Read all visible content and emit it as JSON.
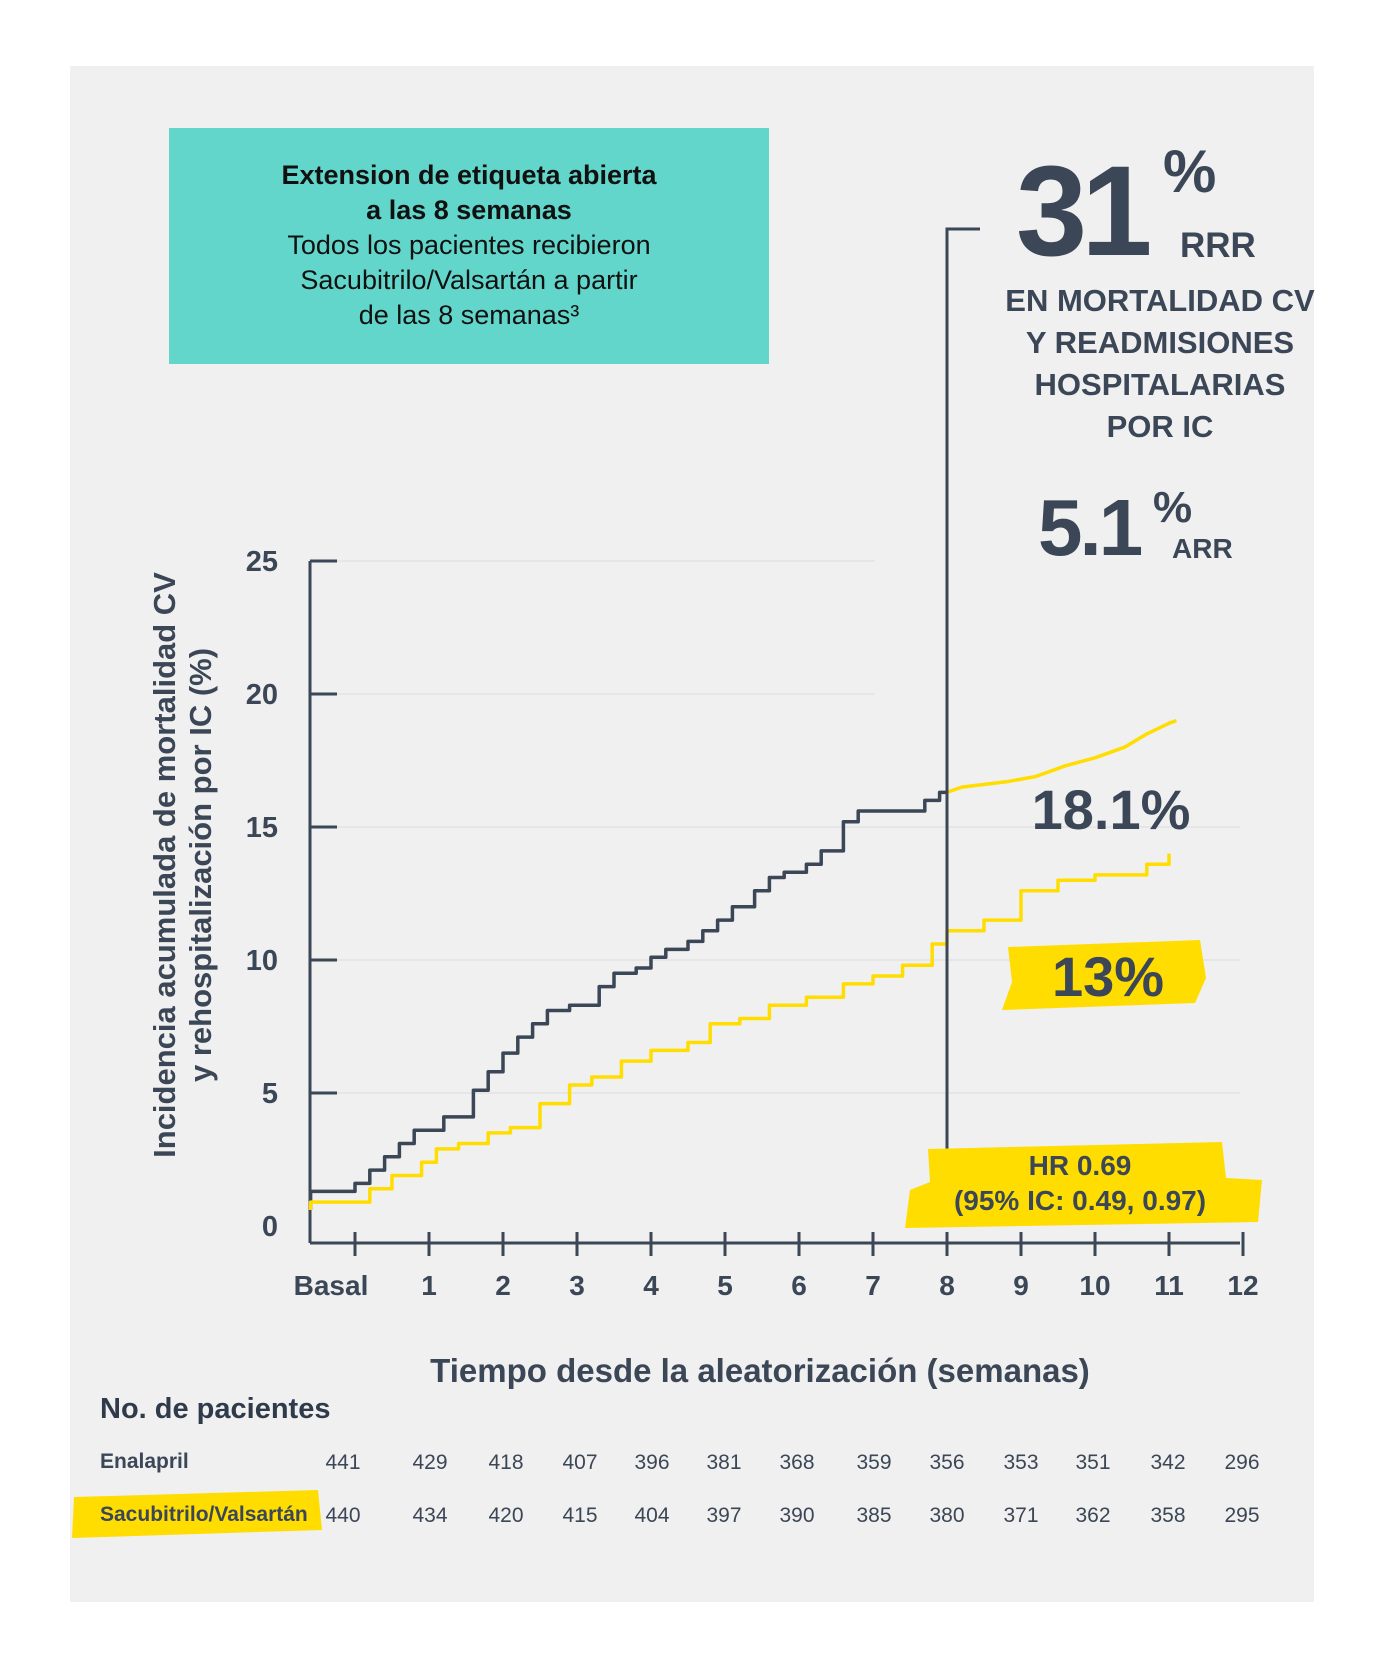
{
  "header_box": {
    "line1": "Extension de etiqueta abierta",
    "line2": "a las 8 semanas",
    "line3": "Todos los pacientes recibieron",
    "line4": "Sacubitrilo/Valsartán a partir",
    "line5": "de las 8 semanas³"
  },
  "rrr": {
    "value": "31",
    "pct": "%",
    "label": "RRR"
  },
  "claim": {
    "line1": "EN MORTALIDAD CV",
    "line2": "Y READMISIONES",
    "line3": "HOSPITALARIAS",
    "line4": "POR IC"
  },
  "arr": {
    "value": "5.1",
    "pct": "%",
    "label": "ARR"
  },
  "colors": {
    "panel": "#f0f0f0",
    "teal": "#63d6cb",
    "enalapril": "#3b4656",
    "sacubitril": "#ffdd00",
    "axis": "#3b4656"
  },
  "chart_data": {
    "type": "line",
    "ylabel_line1": "Incidencia acumulada de mortalidad CV",
    "ylabel_line2": "y rehospitalización por IC (%)",
    "xlabel": "Tiempo desde la aleatorización (semanas)",
    "ylim": [
      0,
      25
    ],
    "xlim": [
      -0.5,
      12
    ],
    "y_ticks": [
      0,
      5,
      10,
      15,
      20,
      25
    ],
    "x_tick_labels": [
      "Basal",
      "1",
      "2",
      "3",
      "4",
      "5",
      "6",
      "7",
      "8",
      "9",
      "10",
      "11",
      "12"
    ],
    "x_tick_values": [
      0,
      1,
      2,
      3,
      4,
      5,
      6,
      7,
      8,
      9,
      10,
      11,
      12
    ],
    "grid": "horizontal",
    "series": [
      {
        "name": "Enalapril",
        "color": "#3b4656",
        "end_label": "18.1%",
        "points": [
          [
            -0.6,
            0.6
          ],
          [
            -0.6,
            1.3
          ],
          [
            0,
            1.3
          ],
          [
            0,
            1.6
          ],
          [
            0.2,
            1.6
          ],
          [
            0.2,
            2.1
          ],
          [
            0.4,
            2.1
          ],
          [
            0.4,
            2.6
          ],
          [
            0.6,
            2.6
          ],
          [
            0.6,
            3.1
          ],
          [
            0.8,
            3.1
          ],
          [
            0.8,
            3.6
          ],
          [
            1.2,
            3.6
          ],
          [
            1.2,
            4.1
          ],
          [
            1.6,
            4.1
          ],
          [
            1.6,
            5.1
          ],
          [
            1.8,
            5.1
          ],
          [
            1.8,
            5.8
          ],
          [
            2.0,
            5.8
          ],
          [
            2.0,
            6.5
          ],
          [
            2.2,
            6.5
          ],
          [
            2.2,
            7.1
          ],
          [
            2.4,
            7.1
          ],
          [
            2.4,
            7.6
          ],
          [
            2.6,
            7.6
          ],
          [
            2.6,
            8.1
          ],
          [
            2.9,
            8.1
          ],
          [
            2.9,
            8.3
          ],
          [
            3.3,
            8.3
          ],
          [
            3.3,
            9.0
          ],
          [
            3.5,
            9.0
          ],
          [
            3.5,
            9.5
          ],
          [
            3.8,
            9.5
          ],
          [
            3.8,
            9.7
          ],
          [
            4.0,
            9.7
          ],
          [
            4.0,
            10.1
          ],
          [
            4.2,
            10.1
          ],
          [
            4.2,
            10.4
          ],
          [
            4.5,
            10.4
          ],
          [
            4.5,
            10.7
          ],
          [
            4.7,
            10.7
          ],
          [
            4.7,
            11.1
          ],
          [
            4.9,
            11.1
          ],
          [
            4.9,
            11.5
          ],
          [
            5.1,
            11.5
          ],
          [
            5.1,
            12.0
          ],
          [
            5.4,
            12.0
          ],
          [
            5.4,
            12.6
          ],
          [
            5.6,
            12.6
          ],
          [
            5.6,
            13.1
          ],
          [
            5.8,
            13.1
          ],
          [
            5.8,
            13.3
          ],
          [
            6.1,
            13.3
          ],
          [
            6.1,
            13.6
          ],
          [
            6.3,
            13.6
          ],
          [
            6.3,
            14.1
          ],
          [
            6.6,
            14.1
          ],
          [
            6.6,
            15.2
          ],
          [
            6.8,
            15.2
          ],
          [
            6.8,
            15.6
          ],
          [
            7.7,
            15.6
          ],
          [
            7.7,
            16.0
          ],
          [
            7.9,
            16.0
          ],
          [
            7.9,
            16.3
          ],
          [
            8.0,
            16.3
          ]
        ]
      },
      {
        "name": "Sacubitrilo/Valsartán",
        "color": "#ffdd00",
        "end_label": "13%",
        "points": [
          [
            -0.6,
            0.6
          ],
          [
            -0.6,
            0.9
          ],
          [
            0.2,
            0.9
          ],
          [
            0.2,
            1.4
          ],
          [
            0.5,
            1.4
          ],
          [
            0.5,
            1.9
          ],
          [
            0.9,
            1.9
          ],
          [
            0.9,
            2.4
          ],
          [
            1.1,
            2.4
          ],
          [
            1.1,
            2.9
          ],
          [
            1.4,
            2.9
          ],
          [
            1.4,
            3.1
          ],
          [
            1.8,
            3.1
          ],
          [
            1.8,
            3.5
          ],
          [
            2.1,
            3.5
          ],
          [
            2.1,
            3.7
          ],
          [
            2.5,
            3.7
          ],
          [
            2.5,
            4.6
          ],
          [
            2.9,
            4.6
          ],
          [
            2.9,
            5.3
          ],
          [
            3.2,
            5.3
          ],
          [
            3.2,
            5.6
          ],
          [
            3.6,
            5.6
          ],
          [
            3.6,
            6.2
          ],
          [
            4.0,
            6.2
          ],
          [
            4.0,
            6.6
          ],
          [
            4.5,
            6.6
          ],
          [
            4.5,
            6.9
          ],
          [
            4.8,
            6.9
          ],
          [
            4.8,
            7.6
          ],
          [
            5.2,
            7.6
          ],
          [
            5.2,
            7.8
          ],
          [
            5.6,
            7.8
          ],
          [
            5.6,
            8.3
          ],
          [
            6.1,
            8.3
          ],
          [
            6.1,
            8.6
          ],
          [
            6.6,
            8.6
          ],
          [
            6.6,
            9.1
          ],
          [
            7.0,
            9.1
          ],
          [
            7.0,
            9.4
          ],
          [
            7.4,
            9.4
          ],
          [
            7.4,
            9.8
          ],
          [
            7.8,
            9.8
          ],
          [
            7.8,
            10.6
          ],
          [
            8.0,
            10.6
          ],
          [
            8.0,
            11.1
          ],
          [
            8.5,
            11.1
          ],
          [
            8.5,
            11.5
          ],
          [
            9.0,
            11.5
          ],
          [
            9.0,
            12.6
          ],
          [
            9.5,
            12.6
          ],
          [
            9.5,
            13.0
          ],
          [
            10.0,
            13.0
          ],
          [
            10.0,
            13.2
          ],
          [
            10.7,
            13.2
          ],
          [
            10.7,
            13.6
          ],
          [
            11.0,
            13.6
          ],
          [
            11.0,
            14.0
          ]
        ]
      },
      {
        "name": "",
        "color": "#ffdd00",
        "points": [
          [
            8.0,
            16.3
          ],
          [
            8.2,
            16.5
          ],
          [
            8.8,
            16.7
          ],
          [
            9.2,
            16.9
          ],
          [
            9.6,
            17.3
          ],
          [
            10.0,
            17.6
          ],
          [
            10.4,
            18.0
          ],
          [
            10.7,
            18.5
          ],
          [
            11.0,
            18.9
          ],
          [
            11.1,
            19.0
          ]
        ]
      }
    ],
    "annotation": {
      "line1": "HR 0.69",
      "line2": "(95% IC: 0.49, 0.97)",
      "arrow_at_week": 8
    }
  },
  "risk_table": {
    "title": "No. de pacientes",
    "rows": [
      {
        "label": "Enalapril",
        "values": [
          "441",
          "429",
          "418",
          "407",
          "396",
          "381",
          "368",
          "359",
          "356",
          "353",
          "351",
          "342",
          "296"
        ]
      },
      {
        "label": "Sacubitrilo/Valsartán",
        "values": [
          "440",
          "434",
          "420",
          "415",
          "404",
          "397",
          "390",
          "385",
          "380",
          "371",
          "362",
          "358",
          "295"
        ]
      }
    ]
  }
}
